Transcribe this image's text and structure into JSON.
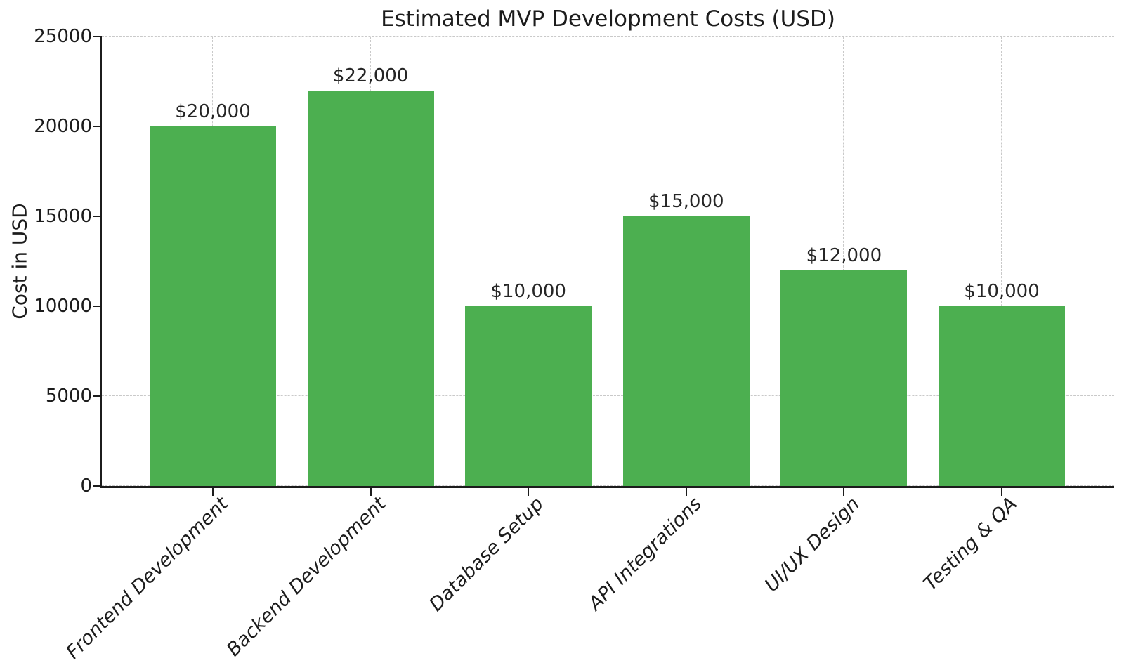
{
  "chart_data": {
    "type": "bar",
    "title": "Estimated MVP Development Costs (USD)",
    "xlabel": "",
    "ylabel": "Cost in USD",
    "categories": [
      "Frontend Development",
      "Backend Development",
      "Database Setup",
      "API Integrations",
      "UI/UX Design",
      "Testing & QA"
    ],
    "values": [
      20000,
      22000,
      10000,
      15000,
      12000,
      10000
    ],
    "bar_value_labels": [
      "$20,000",
      "$22,000",
      "$10,000",
      "$15,000",
      "$12,000",
      "$10,000"
    ],
    "yticks": [
      0,
      5000,
      10000,
      15000,
      20000,
      25000
    ],
    "ylim": [
      0,
      25000
    ],
    "legend": "none",
    "grid": {
      "horizontal": true,
      "vertical": true,
      "style": "dashed"
    },
    "xtick_label_style": "rotated 45deg, italic, right-anchored",
    "colors": {
      "bar": "#4caf50",
      "grid": "#c9c9c9",
      "spine": "#1c1c1c",
      "text": "#1c1c1c",
      "value_label": "#262626",
      "background": "#ffffff"
    }
  }
}
